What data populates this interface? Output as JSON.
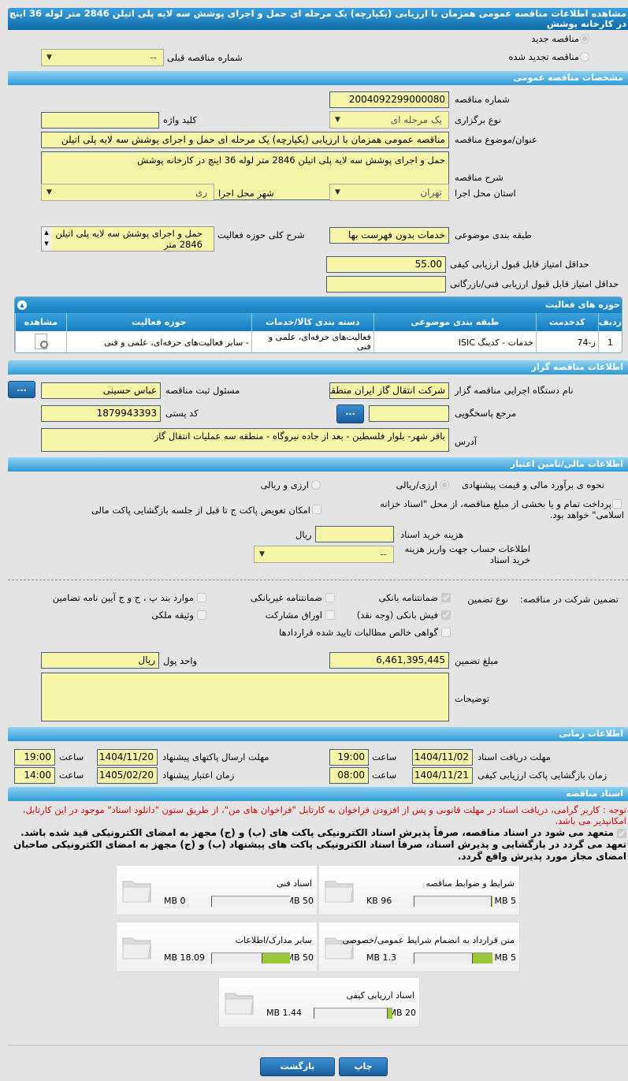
{
  "title": "مشاهده اطلاعات مناقصه عمومی همزمان با ارزیابی (یکپارچه) یک مرحله ای حمل و اجرای پوشش سه لایه پلی اتیلن 2846 متر لوله 36 اینچ در کارخانه پوشش",
  "top": {
    "new_tender": "مناقصه جدید",
    "renewed_tender": "مناقصه تجدید شده",
    "prev_number_label": "شماره مناقصه قبلی",
    "prev_number_value": "--"
  },
  "general": {
    "header": "مشخصات مناقصه عمومی",
    "number_label": "شماره مناقصه",
    "number": "2004092299000080",
    "type_label": "نوع برگزاری",
    "type": "یک مرحله ای",
    "keyword_label": "کلید واژه",
    "keyword": "",
    "subject_label": "عنوان/موضوع مناقصه",
    "subject": "مناقصه عمومی همزمان با ارزیابی (یکپارچه) یک مرحله ای حمل و اجرای پوشش سه لایه پلی اتیلن",
    "desc_label": "شرح مناقصه",
    "desc": "حمل و اجرای پوشش سه لایه پلی اتیلن 2846 متر لوله 36 اینچ در کارخانه پوشش",
    "province_label": "استان محل اجرا",
    "province": "تهران",
    "city_label": "شهر محل اجرا",
    "city": "ری",
    "category_label": "طبقه بندی موضوعی",
    "category": "خدمات بدون فهرست بها",
    "activity_desc_label": "شرح کلی حوزه فعالیت",
    "activity_desc": "حمل و اجرای پوشش سه لایه پلی اتیلن 2846 متر",
    "min_quality_label": "حداقل امتیاز قابل قبول ارزیابی کیفی",
    "min_quality": "55.00",
    "min_tech_label": "حداقل امتیاز قابل قبول ارزیابی فنی/بازرگانی",
    "min_tech": ""
  },
  "activities": {
    "header": "حوزه های فعالیت",
    "columns": [
      "ردیف",
      "کدخدمت",
      "طبقه بندی موضوعی",
      "دسته بندی کالا/خدمات",
      "حوزه فعالیت",
      "مشاهده"
    ],
    "rows": [
      {
        "idx": "1",
        "code": "ز-74",
        "category": "خدمات - کدینگ ISIC",
        "group": "فعالیت‌های حرفه‌ای، علمی و فنی",
        "field": "- سایر فعالیت‌های حرفه‌ای، علمی و فنی"
      }
    ]
  },
  "organizer": {
    "header": "اطلاعات مناقصه گزار",
    "org_label": "نام دستگاه اجرایی مناقصه گزار",
    "org": "شرکت انتقال گاز ایران منطقه",
    "resp_label": "مسئول ثبت مناقصه",
    "resp": "عباس حسینی",
    "ref_label": "مرجع پاسخگویی",
    "ref": "",
    "postal_label": "کد پستی",
    "postal": "1879943393",
    "address_label": "آدرس",
    "address": "باقر شهر- بلوار فلسطین - بعد از جاده نیروگاه - منطقه سه عملیات انتقال گاز",
    "more": "..."
  },
  "finance": {
    "header": "اطلاعات مالی/تامین اعتبار",
    "estimate_label": "نحوه ی برآورد مالی و قیمت پیشنهادی",
    "opt1": "ارزی/ریالی",
    "opt2": "ارزی و ریالی",
    "treasury": "پرداخت تمام و یا بخشی از مبلغ مناقصه، از محل \"اسناد خزانه اسلامی\" خواهد بود.",
    "swap": "امکان تعویض پاکت ج تا قبل از جلسه بازگشایی پاکت مالی",
    "doc_cost_label": "هزینه خرید اسناد",
    "doc_cost": "",
    "rial": "ریال",
    "account_label": "اطلاعات حساب جهت واریز هزینه خرید اسناد",
    "account": "--"
  },
  "guarantee": {
    "label": "تضمین شرکت در مناقصه:",
    "type_label": "نوع تضمین",
    "options": [
      {
        "label": "ضمانتنامه بانکی",
        "checked": true
      },
      {
        "label": "ضمانتنامه غیربانکی",
        "checked": false
      },
      {
        "label": "موارد بند پ ، ج و ج آیین نامه تضامین",
        "checked": false
      },
      {
        "label": "فیش بانکی (وجه نقد)",
        "checked": true
      },
      {
        "label": "اوراق مشارکت",
        "checked": false
      },
      {
        "label": "وثیقه ملکی",
        "checked": false
      },
      {
        "label": "گواهی خالص مطالبات تایید شده قراردادها",
        "checked": false
      }
    ],
    "amount_label": "مبلغ تضمین",
    "amount": "6,461,395,445",
    "currency_label": "واحد پول",
    "currency": "ریال",
    "notes_label": "توضیحات",
    "notes": ""
  },
  "timing": {
    "header": "اطلاعات زمانی",
    "hour": "ساعت",
    "doc_deadline_label": "مهلت دریافت اسناد",
    "doc_deadline": "1404/11/02",
    "doc_deadline_time": "19:00",
    "submit_label": "مهلت ارسال پاکتهای پیشنهاد",
    "submit": "1404/11/20",
    "submit_time": "19:00",
    "open_label": "زمان بازگشایی پاکت ارزیابی کیفی",
    "open": "1404/11/21",
    "open_time": "08:00",
    "validity_label": "زمان اعتبار پیشنهاد",
    "validity": "1405/02/20",
    "validity_time": "14:00"
  },
  "docs": {
    "header": "اسناد مناقصه",
    "note": "توجه : کاربر گرامی، دریافت اسناد در مهلت قانونی و پس از افزودن فراخوان به کارتابل \"فراخوان های من\"، از طریق ستون \"دانلود اسناد\" موجود در این کارتابل، امکانپذیر می باشد.",
    "pledge": "متعهد می شود در اسناد مناقصه، صرفاً پذیرش اسناد الکترونیکی پاکت های (ب) و (ج) مجهز به امضای الکترونیکی قید شده باشد. تعهد می گردد در بازگشایی و پذیرش اسناد، صرفاً اسناد الکترونیکی پاکت های پیشنهاد (ب) و (ج) مجهز به امضای الکترونیکی صاحبان امضای مجاز مورد پذیرش واقع گردد.",
    "files": [
      {
        "name": "شرایط و ضوابط مناقصه",
        "size": "96 KB",
        "max": "5 MB",
        "fill": 0.019
      },
      {
        "name": "اسناد فنی",
        "size": "0 MB",
        "max": "50 MB",
        "fill": 0
      },
      {
        "name": "متن قرارداد به انضمام شرایط عمومی/خصوصی",
        "size": "1.3 MB",
        "max": "5 MB",
        "fill": 0.26
      },
      {
        "name": "سایر مدارک/اطلاعات",
        "size": "18.09 MB",
        "max": "50 MB",
        "fill": 0.362
      },
      {
        "name": "اسناد ارزیابی کیفی",
        "size": "1.44 MB",
        "max": "20 MB",
        "fill": 0.072
      }
    ]
  },
  "buttons": {
    "print": "چاپ",
    "back": "بازگشت"
  }
}
